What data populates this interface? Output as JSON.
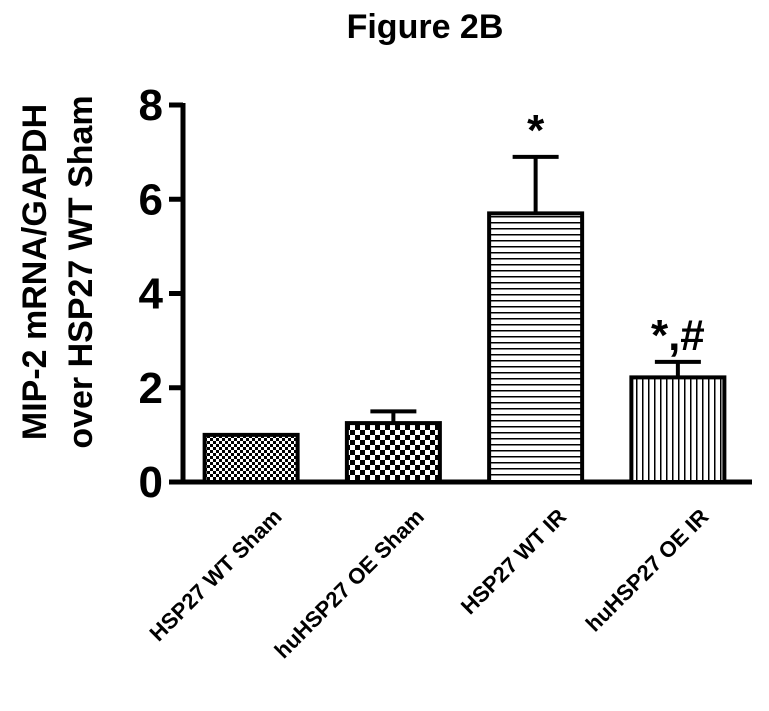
{
  "chart_data": {
    "type": "bar",
    "title": "Figure 2B",
    "ylabel_line1": "MIP-2 mRNA/GAPDH",
    "ylabel_line2": "over HSP27  WT Sham",
    "xlabel": "",
    "ylim": [
      0,
      8
    ],
    "yticks": [
      "0",
      "2",
      "4",
      "6",
      "8"
    ],
    "grid": false,
    "categories": [
      "HSP27 WT Sham",
      "huHSP27 OE Sham",
      "HSP27 WT IR",
      "huHSP27 OE IR"
    ],
    "values": [
      1.0,
      1.25,
      5.7,
      2.22
    ],
    "errors": [
      0.0,
      0.25,
      1.2,
      0.33
    ],
    "annotations": [
      "",
      "",
      "*",
      "*,#"
    ],
    "patterns": [
      "fine-checker",
      "coarse-checker",
      "horizontal-lines",
      "vertical-lines"
    ],
    "colors": {
      "bar_stroke": "#000000",
      "pattern": "#000000",
      "background": "#ffffff"
    }
  }
}
